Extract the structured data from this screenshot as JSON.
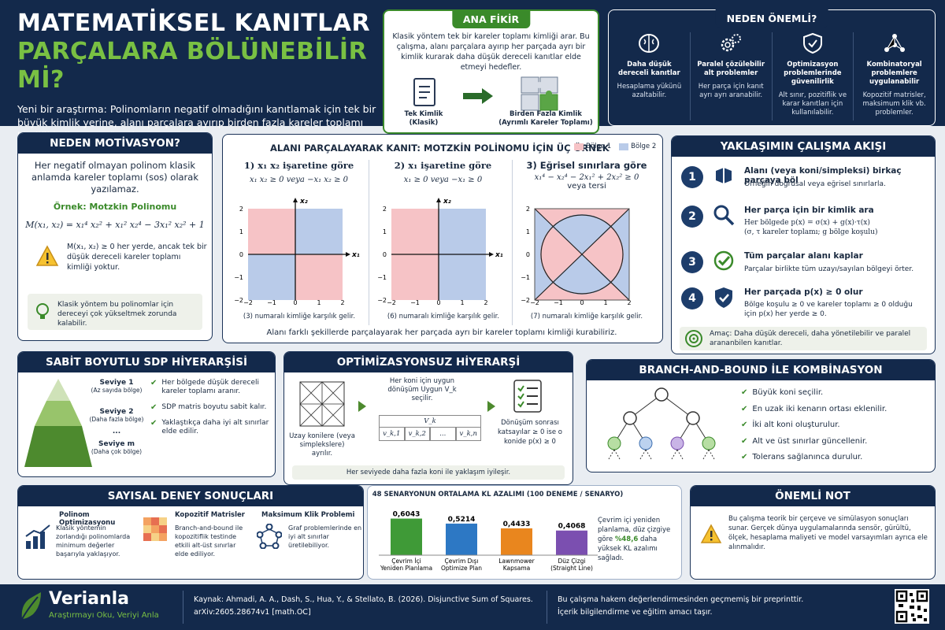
{
  "header": {
    "title1": "MATEMATİKSEL KANITLAR",
    "title2": "PARÇALARA BÖLÜNEBİLİR Mİ?",
    "intro": "Yeni bir araştırma: Polinomların negatif olmadığını kanıtlamak için tek bir büyük kimlik yerine, alanı parçalara ayırıp birden fazla kareler toplamı kimliği kullanmayı öneriyor."
  },
  "main_idea": {
    "title": "ANA FİKİR",
    "text": "Klasik yöntem tek bir kareler toplamı kimliği arar. Bu çalışma, alanı parçalara ayırıp her parçada ayrı bir kimlik kurarak daha düşük dereceli kanıtlar elde etmeyi hedefler.",
    "left_label": "Tek Kimlik\n(Klasik)",
    "right_label": "Birden Fazla Kimlik\n(Ayrımlı Kareler Toplamı)"
  },
  "why": {
    "title": "NEDEN ÖNEMLİ?",
    "items": [
      {
        "icon": "brain-icon",
        "title": "Daha düşük dereceli kanıtlar",
        "desc": "Hesaplama yükünü azaltabilir."
      },
      {
        "icon": "gears-icon",
        "title": "Paralel çözülebilir alt problemler",
        "desc": "Her parça için kanıt ayrı ayrı aranabilir."
      },
      {
        "icon": "shield-icon",
        "title": "Optimizasyon problemlerinde güvenilirlik",
        "desc": "Alt sınır, pozitiflik ve karar kanıtları için kullanılabilir."
      },
      {
        "icon": "network-icon",
        "title": "Kombinatoryal problemlere uygulanabilir",
        "desc": "Kopozitif matrisler, maksimum klik vb. problemler."
      }
    ]
  },
  "motivation": {
    "title": "NEDEN MOTİVASYON?",
    "text": "Her negatif olmayan polinom klasik anlamda kareler toplamı (sos) olarak yazılamaz.",
    "example": "Örnek: Motzkin Polinomu",
    "formula": "M(x₁, x₂) = x₁⁴ x₂² + x₁² x₂⁴ − 3x₁² x₂² + 1",
    "warning": "M(x₁, x₂) ≥ 0 her yerde, ancak tek bir düşük dereceli kareler toplamı kimliği yoktur.",
    "note": "Klasik yöntem bu polinomlar için dereceyi çok yükseltmek zorunda kalabilir."
  },
  "examples": {
    "title": "ALANI PARÇALAYARAK KANIT: MOTZKİN POLİNOMU İÇİN ÜÇ ÖRNEK",
    "legend": [
      "Bölge 1",
      "Bölge 2"
    ],
    "colors": {
      "region1": "#f6c3c6",
      "region2": "#b9cbe9"
    },
    "panels": [
      {
        "title": "1) x₁ x₂ işaretine göre",
        "cond": "x₁ x₂ ≥ 0    veya   −x₁ x₂ ≥ 0",
        "cond2": "",
        "caption": "(3) numaralı kimliğe karşılık gelir."
      },
      {
        "title": "2) x₁ işaretine göre",
        "cond": "x₁ ≥ 0    veya   −x₁ ≥ 0",
        "cond2": "",
        "caption": "(6) numaralı kimliğe karşılık gelir."
      },
      {
        "title": "3) Eğrisel sınırlara göre",
        "cond": "x₁⁴ − x₂⁴ − 2x₁² + 2x₂² ≥ 0",
        "cond2": "veya tersi",
        "caption": "(7) numaralı kimliğe karşılık gelir."
      }
    ],
    "axis": {
      "x": "x₁",
      "y": "x₂",
      "ticks": [
        "−2",
        "−1",
        "0",
        "1",
        "2"
      ],
      "yticks": [
        "2",
        "1",
        "0",
        "−1",
        "−2"
      ]
    },
    "footer": "Alanı farklı şekillerde parçalayarak her parçada ayrı bir kareler toplamı kimliği kurabiliriz."
  },
  "flow": {
    "title": "YAKLAŞIMIN ÇALIŞMA AKIŞI",
    "steps": [
      {
        "n": "1",
        "icon": "split-box-icon",
        "title": "Alanı (veya koni/simpleksi) birkaç parçaya böl",
        "desc": "Örneğin doğrusal veya eğrisel sınırlarla."
      },
      {
        "n": "2",
        "icon": "magnifier-icon",
        "title": "Her parça için bir kimlik ara",
        "desc": "Her bölgede p(x) = σ(x) + g(x)·τ(x)\n(σ, τ kareler toplamı; g bölge koşulu)"
      },
      {
        "n": "3",
        "icon": "check-circle-icon",
        "title": "Tüm parçalar alanı kaplar",
        "desc": "Parçalar birlikte tüm uzayı/sayılan bölgeyi örter."
      },
      {
        "n": "4",
        "icon": "shield-check-icon",
        "title": "Her parçada p(x) ≥ 0 olur",
        "desc": "Bölge koşulu ≥ 0 ve kareler toplamı ≥ 0 olduğu için p(x) her yerde ≥ 0."
      }
    ],
    "goal": "Amaç: Daha düşük dereceli, daha yönetilebilir ve paralel arananbilen kanıtlar."
  },
  "sdp": {
    "title": "SABİT BOYUTLU SDP HİYERARŞİSİ",
    "levels": [
      {
        "name": "Seviye 1",
        "sub": "(Az sayıda bölge)"
      },
      {
        "name": "Seviye 2",
        "sub": "(Daha fazla bölge)"
      },
      {
        "name": "...",
        "sub": ""
      },
      {
        "name": "Seviye m",
        "sub": "(Daha çok bölge)"
      }
    ],
    "bullets": [
      "Her bölgede düşük dereceli kareler toplamı aranır.",
      "SDP matris boyutu sabit kalır.",
      "Yaklaştıkça daha iyi alt sınırlar elde edilir."
    ]
  },
  "opt": {
    "title": "OPTİMİZASYONSUZ HİYERARŞİ",
    "left": "Uzay konilere (veya simplekslere) ayrılır.",
    "mid": "Her koni için uygun dönüşüm Uygun V_k seçilir.",
    "table_head": "V_k",
    "table_cells": [
      "v_k,1",
      "v_k,2",
      "...",
      "v_k,n"
    ],
    "right": "Dönüşüm sonrası katsayılar ≥ 0 ise o konide p(x) ≥ 0",
    "footer": "Her seviyede daha fazla koni ile yaklaşım iyileşir."
  },
  "bnb": {
    "title": "BRANCH-AND-BOUND İLE KOMBİNASYON",
    "bullets": [
      "Büyük koni seçilir.",
      "En uzak iki kenarın ortası eklenilir.",
      "İki alt koni oluşturulur.",
      "Alt ve üst sınırlar güncellenir.",
      "Tolerans sağlanınca durulur."
    ]
  },
  "results": {
    "title": "SAYISAL DENEY SONUÇLARI",
    "items": [
      {
        "icon": "bar-chart-icon",
        "title": "Polinom Optimizasyonu",
        "desc": "Klasik yöntemin zorlandığı polinomlarda minimum değerler başarıyla yaklaşıyor."
      },
      {
        "icon": "matrix-grid-icon",
        "title": "Kopozitif Matrisler",
        "desc": "Branch-and-bound ile kopozitiflik testinde etkili alt-üst sınırlar elde ediliyor."
      },
      {
        "icon": "graph-icon",
        "title": "Maksimum Klik Problemi",
        "desc": "Graf problemlerinde en iyi alt sınırlar üretilebiliyor."
      }
    ]
  },
  "chart_data": {
    "type": "bar",
    "title": "48 SENARYONUN ORTALAMA KL AZALIMI (100 DENEME / SENARYO)",
    "categories": [
      "Çevrim İçi\nYeniden Planlama",
      "Çevrim Dışı\nOptimize Plan",
      "Lawnmower\nKapsama",
      "Düz Çizgi\n(Straight Line)"
    ],
    "values": [
      0.6043,
      0.5214,
      0.4433,
      0.4068
    ],
    "labels": [
      "0,6043",
      "0,5214",
      "0,4433",
      "0,4068"
    ],
    "colors": [
      "#3f9a37",
      "#2d78c4",
      "#e9861e",
      "#7b4fb0"
    ],
    "ylim": [
      0,
      0.65
    ],
    "note_pre": "Çevrim içi yeniden planlama, düz çizgiye göre",
    "note_hl": "%48,6",
    "note_post": "daha yüksek KL azalımı sağladı."
  },
  "important": {
    "title": "ÖNEMLİ NOT",
    "text": "Bu çalışma teorik bir çerçeve ve simülasyon sonuçları sunar. Gerçek dünya uygulamalarında sensör, gürültü, ölçek, hesaplama maliyeti ve model varsayımları ayrıca ele alınmalıdır."
  },
  "footer": {
    "brand": "Verianla",
    "tagline": "Araştırmayı Oku, Veriyi Anla",
    "source": "Kaynak: Ahmadi, A. A., Dash, S., Hua, Y., & Stellato, B. (2026). Disjunctive Sum of Squares.",
    "arxiv": "arXiv:2605.28674v1 [math.OC]",
    "note1": "Bu çalışma hakem değerlendirmesinden geçmemiş bir preprinttir.",
    "note2": "İçerik bilgilendirme ve eğitim amacı taşır."
  }
}
